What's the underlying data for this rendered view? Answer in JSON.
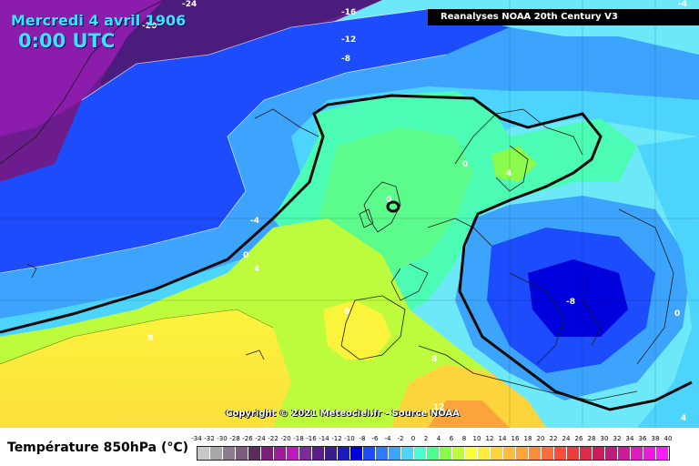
{
  "header": {
    "date": "Mercredi 4 avril 1906",
    "time": "0:00 UTC",
    "source": "Reanalyses NOAA 20th Century V3",
    "copyright": "Copyright © 2021 Meteociel.fr - Source NOAA"
  },
  "map": {
    "variable": "Température 850hPa (°C)",
    "isotherm_labels": [
      "-24",
      "-20",
      "-16",
      "-12",
      "-8",
      "-4",
      "0",
      "4",
      "8",
      "-8",
      "0",
      "4",
      "8",
      "0",
      "4",
      "0",
      "8",
      "12",
      "-4"
    ]
  },
  "legend": {
    "title": "Température 850hPa (°C)",
    "ticks": [
      "-34",
      "-32",
      "-30",
      "-28",
      "-26",
      "-24",
      "-22",
      "-20",
      "-18",
      "-16",
      "-14",
      "-12",
      "-10",
      "-8",
      "-6",
      "-4",
      "-2",
      "0",
      "2",
      "4",
      "6",
      "8",
      "10",
      "12",
      "14",
      "16",
      "18",
      "20",
      "22",
      "24",
      "26",
      "28",
      "30",
      "32",
      "34",
      "36",
      "38",
      "40"
    ],
    "colors": [
      "#c8c8c8",
      "#a8a8a8",
      "#8c7c8c",
      "#7c5c7c",
      "#5c2c5c",
      "#7c1c7c",
      "#9c1c9c",
      "#bc1cbc",
      "#7c2c9c",
      "#5c1c8c",
      "#3c1c8c",
      "#1c1cbc",
      "#0000dc",
      "#1c4cfc",
      "#2c7cfc",
      "#3ca4fc",
      "#4cd4fc",
      "#4cfccc",
      "#4cfc8c",
      "#8cfc4c",
      "#bcfc3c",
      "#fcfc3c",
      "#fcec3c",
      "#fcd43c",
      "#fcbc3c",
      "#fca43c",
      "#fc8c3c",
      "#fc6c3c",
      "#fc4c3c",
      "#ec3c3c",
      "#dc2c4c",
      "#cc1c5c",
      "#bc1c7c",
      "#cc1c9c",
      "#dc1cbc",
      "#ec1cdc",
      "#fc1cfc"
    ]
  }
}
